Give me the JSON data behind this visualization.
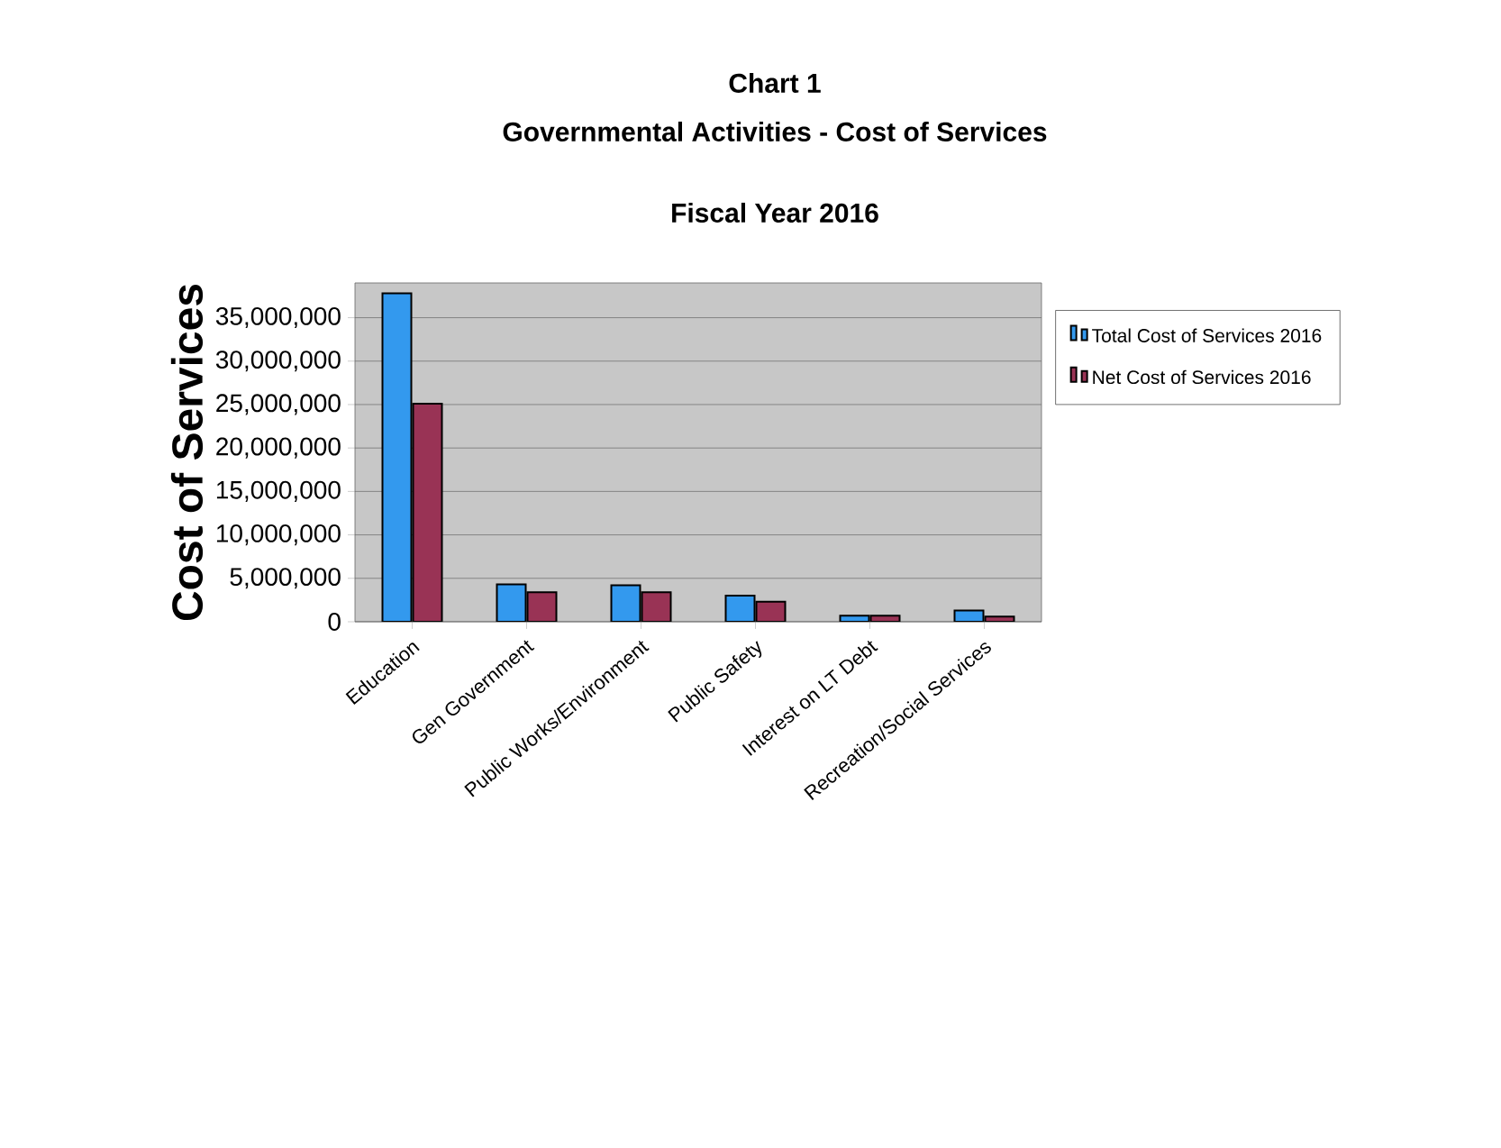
{
  "chart_data": {
    "type": "bar",
    "title": "Chart 1",
    "subtitle": "Governmental Activities - Cost of Services",
    "annotations": [
      "Fiscal Year 2016"
    ],
    "ylabel": "Cost of Services",
    "categories": [
      "Education",
      "Gen Government",
      "Public Works/Environment",
      "Public Safety",
      "Interest on LT Debt",
      "Recreation/Social Services"
    ],
    "series": [
      {
        "name": "Total Cost of Services 2016",
        "color": "#3399ee",
        "values": [
          37800000,
          4300000,
          4200000,
          3000000,
          700000,
          1300000
        ]
      },
      {
        "name": "Net Cost of Services 2016",
        "color": "#993355",
        "values": [
          25100000,
          3400000,
          3400000,
          2300000,
          700000,
          600000
        ]
      }
    ],
    "ylim": [
      0,
      39000000
    ],
    "yticks": [
      {
        "value": 0,
        "label": "0"
      },
      {
        "value": 5000000,
        "label": "5,000,000"
      },
      {
        "value": 10000000,
        "label": "10,000,000"
      },
      {
        "value": 15000000,
        "label": "15,000,000"
      },
      {
        "value": 20000000,
        "label": "20,000,000"
      },
      {
        "value": 25000000,
        "label": "25,000,000"
      },
      {
        "value": 30000000,
        "label": "30,000,000"
      },
      {
        "value": 35000000,
        "label": "35,000,000"
      }
    ],
    "grid": "y",
    "legend": "right"
  }
}
